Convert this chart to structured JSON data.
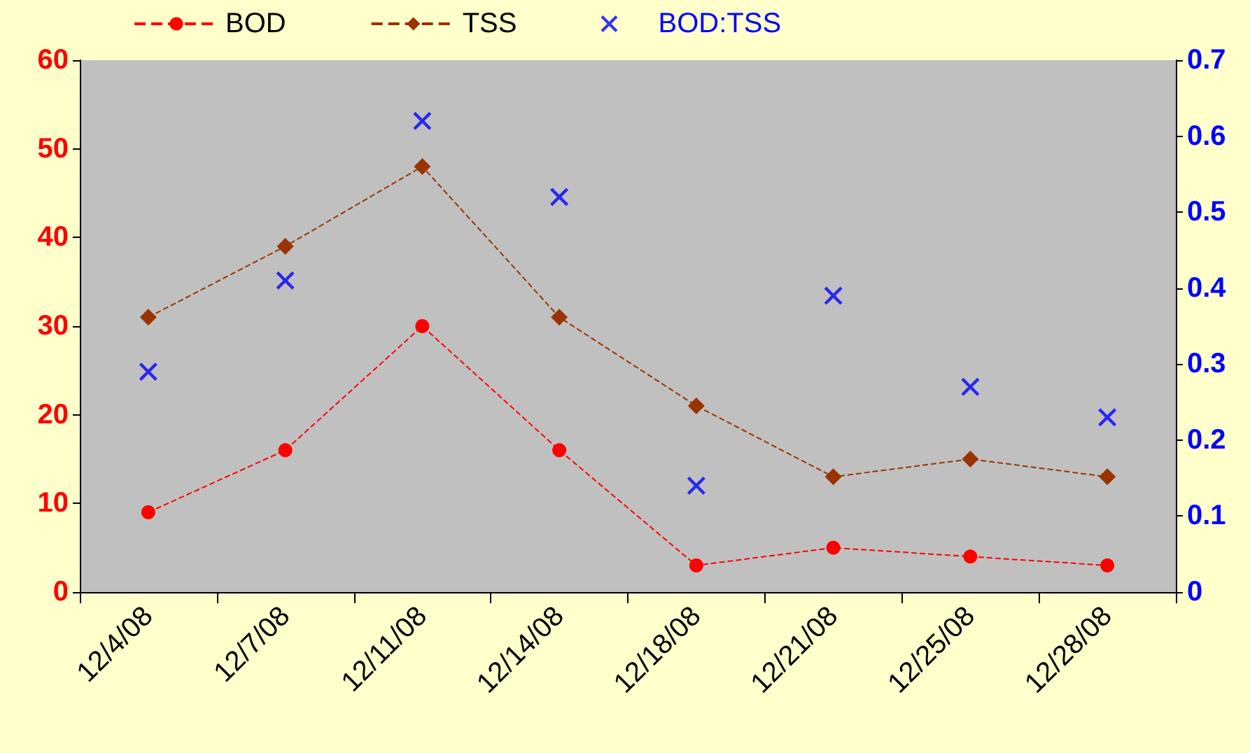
{
  "chart_data": {
    "type": "line",
    "categories": [
      "12/4/08",
      "12/7/08",
      "12/11/08",
      "12/14/08",
      "12/18/08",
      "12/21/08",
      "12/25/08",
      "12/28/08"
    ],
    "series": [
      {
        "name": "BOD",
        "color": "#ff0000",
        "values": [
          9,
          16,
          30,
          16,
          3,
          5,
          4,
          3
        ],
        "marker": "circle",
        "line_style": "dashed"
      },
      {
        "name": "TSS",
        "color": "#993300",
        "values": [
          31,
          39,
          48,
          31,
          21,
          13,
          15,
          13
        ],
        "marker": "diamond",
        "line_style": "dashed"
      },
      {
        "name": "BOD:TSS",
        "type": "scatter",
        "axis": "y2",
        "color": "#0000ff",
        "values": [
          0.29,
          0.41,
          0.62,
          0.52,
          0.14,
          0.39,
          0.27,
          0.23
        ],
        "marker": "cross"
      }
    ],
    "ylim": [
      0,
      60
    ],
    "yticks": [
      0,
      10,
      20,
      30,
      40,
      50,
      60
    ],
    "y2lim": [
      0,
      0.7
    ],
    "y2ticks": [
      0,
      0.1,
      0.2,
      0.3,
      0.4,
      0.5,
      0.6,
      0.7
    ],
    "grid": false,
    "legend": "top"
  }
}
